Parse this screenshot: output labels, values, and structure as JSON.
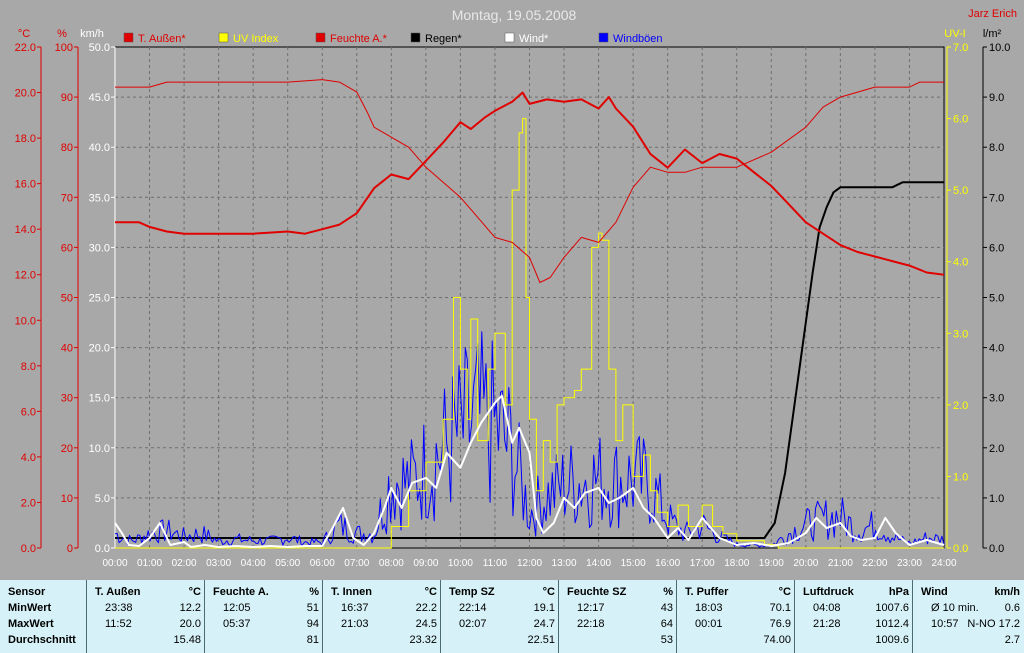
{
  "header": {
    "title": "Montag, 19.05.2008",
    "author": "Jarz Erich"
  },
  "chart_data": {
    "type": "line",
    "x_ticks": [
      "00:00",
      "01:00",
      "02:00",
      "03:00",
      "04:00",
      "05:00",
      "06:00",
      "07:00",
      "08:00",
      "09:00",
      "10:00",
      "11:00",
      "12:00",
      "13:00",
      "14:00",
      "15:00",
      "16:00",
      "17:00",
      "18:00",
      "19:00",
      "20:00",
      "21:00",
      "22:00",
      "23:00",
      "24:00"
    ],
    "axes": {
      "temp": {
        "unit": "°C",
        "min": 0,
        "max": 22,
        "ticks": [
          "0.0",
          "2.0",
          "4.0",
          "6.0",
          "8.0",
          "10.0",
          "12.0",
          "14.0",
          "16.0",
          "18.0",
          "20.0",
          "22.0"
        ],
        "color": "#e00000"
      },
      "humidity": {
        "unit": "%",
        "min": 0,
        "max": 100,
        "ticks": [
          "0",
          "10",
          "20",
          "30",
          "40",
          "50",
          "60",
          "70",
          "80",
          "90",
          "100"
        ],
        "color": "#e00000"
      },
      "wind": {
        "unit": "km/h",
        "min": 0,
        "max": 50,
        "ticks": [
          "0.0",
          "5.0",
          "10.0",
          "15.0",
          "20.0",
          "25.0",
          "30.0",
          "35.0",
          "40.0",
          "45.0",
          "50.0"
        ],
        "color": "#ffffff"
      },
      "uv": {
        "unit": "UV-I",
        "min": 0,
        "max": 7,
        "ticks": [
          "0.0",
          "1.0",
          "2.0",
          "3.0",
          "4.0",
          "5.0",
          "6.0",
          "7.0"
        ],
        "color": "#ffff00"
      },
      "rain": {
        "unit": "l/m²",
        "min": 0,
        "max": 10,
        "ticks": [
          "0.0",
          "1.0",
          "2.0",
          "3.0",
          "4.0",
          "5.0",
          "6.0",
          "7.0",
          "8.0",
          "9.0",
          "10.0"
        ],
        "color": "#000000"
      }
    },
    "legend": [
      {
        "name": "T. Außen*",
        "color": "#e00000"
      },
      {
        "name": "UV Index",
        "color": "#ffff00"
      },
      {
        "name": "Feuchte A.*",
        "color": "#e00000"
      },
      {
        "name": "Regen*",
        "color": "#000000"
      },
      {
        "name": "Wind*",
        "color": "#ffffff"
      },
      {
        "name": "Windböen",
        "color": "#0000ff"
      }
    ],
    "series": [
      {
        "name": "T. Außen*",
        "axis": "temp",
        "color": "#e00000",
        "width": 2,
        "x": [
          0,
          0.7,
          1,
          1.5,
          2,
          3,
          4,
          5,
          5.5,
          6,
          6.5,
          7,
          7.5,
          8,
          8.5,
          9,
          9.5,
          10,
          10.3,
          10.7,
          11,
          11.5,
          11.8,
          12,
          12.5,
          13,
          13.5,
          14,
          14.3,
          14.5,
          15,
          15.5,
          16,
          16.5,
          17,
          17.5,
          18,
          18.5,
          19,
          19.5,
          20,
          20.5,
          21,
          21.5,
          22,
          22.5,
          23,
          23.5,
          24
        ],
        "y": [
          14.3,
          14.3,
          14.1,
          13.9,
          13.8,
          13.8,
          13.8,
          13.9,
          13.8,
          14.0,
          14.2,
          14.7,
          15.8,
          16.4,
          16.2,
          17.0,
          17.8,
          18.7,
          18.4,
          18.9,
          19.2,
          19.6,
          20.0,
          19.5,
          19.7,
          19.6,
          19.7,
          19.3,
          19.8,
          19.3,
          18.5,
          17.3,
          16.7,
          17.5,
          16.9,
          17.3,
          17.1,
          16.5,
          15.9,
          15.1,
          14.3,
          13.8,
          13.3,
          13.0,
          12.8,
          12.6,
          12.4,
          12.1,
          12.0
        ]
      },
      {
        "name": "Feuchte A.*",
        "axis": "humidity",
        "color": "#e00000",
        "width": 1,
        "x": [
          0,
          1,
          1.5,
          2,
          3,
          4,
          5,
          6,
          6.5,
          7,
          7.3,
          7.5,
          8,
          8.5,
          9,
          9.5,
          10,
          10.5,
          11,
          11.5,
          12,
          12.3,
          12.6,
          13,
          13.5,
          14,
          14.5,
          15,
          15.5,
          16,
          16.5,
          17,
          18,
          19,
          20,
          20.5,
          21,
          22,
          22.5,
          23,
          23.3,
          24
        ],
        "y": [
          92,
          92,
          93,
          93,
          93,
          93,
          93,
          93.5,
          93,
          91,
          87,
          84,
          82,
          80,
          76,
          73,
          70,
          66,
          62,
          61,
          58,
          53,
          54,
          58,
          62,
          61,
          65,
          72,
          76,
          75,
          75,
          76,
          76,
          79,
          84,
          88,
          90,
          92,
          92,
          92,
          93,
          93
        ]
      },
      {
        "name": "UV Index",
        "axis": "uv",
        "color": "#ffff00",
        "width": 1,
        "step": true,
        "x": [
          0,
          7,
          8,
          8.5,
          9,
          9.5,
          9.8,
          10,
          10.2,
          10.3,
          10.5,
          10.8,
          11,
          11.3,
          11.5,
          11.7,
          11.8,
          11.9,
          12,
          12.2,
          12.4,
          12.6,
          12.8,
          13,
          13.3,
          13.5,
          13.8,
          14,
          14.1,
          14.3,
          14.5,
          14.7,
          15,
          15.3,
          15.5,
          15.7,
          16,
          16.3,
          16.6,
          17,
          17.3,
          17.6,
          18,
          18.4,
          18.8,
          19.2,
          24
        ],
        "y": [
          0,
          0,
          0.3,
          0.8,
          1.2,
          1.8,
          3.5,
          2.5,
          1.8,
          3.2,
          1.5,
          2.5,
          3.0,
          2.0,
          5.0,
          5.8,
          6.0,
          3.5,
          1.8,
          0.8,
          1.5,
          1.2,
          2.0,
          2.1,
          2.2,
          2.5,
          4.2,
          4.4,
          4.3,
          2.5,
          1.5,
          2.0,
          1.0,
          1.3,
          0.8,
          0.5,
          0.3,
          0.6,
          0.3,
          0.6,
          0.3,
          0.2,
          0.1,
          0.1,
          0.05,
          0,
          0
        ]
      },
      {
        "name": "Regen*",
        "axis": "rain",
        "color": "#000000",
        "width": 2,
        "x": [
          0,
          1,
          2,
          3,
          4,
          5,
          6,
          7,
          8,
          9,
          10,
          11,
          12,
          13,
          14,
          15,
          16,
          17,
          18,
          18.8,
          19.1,
          19.4,
          19.6,
          19.8,
          20.0,
          20.2,
          20.4,
          20.6,
          20.8,
          21.0,
          21.5,
          22,
          22.5,
          22.8,
          23,
          24
        ],
        "y": [
          0.2,
          0.2,
          0.2,
          0.2,
          0.2,
          0.2,
          0.2,
          0.2,
          0.2,
          0.2,
          0.2,
          0.2,
          0.2,
          0.2,
          0.2,
          0.2,
          0.2,
          0.2,
          0.2,
          0.2,
          0.5,
          1.5,
          2.5,
          3.5,
          4.5,
          5.5,
          6.4,
          6.8,
          7.1,
          7.2,
          7.2,
          7.2,
          7.2,
          7.3,
          7.3,
          7.3
        ]
      },
      {
        "name": "Wind*",
        "axis": "wind",
        "color": "#ffffff",
        "width": 2,
        "x": [
          0,
          0.2,
          0.4,
          0.7,
          1,
          1.3,
          1.6,
          2,
          2.2,
          2.6,
          3,
          3.5,
          4,
          4.5,
          5,
          5.5,
          6,
          6.3,
          6.6,
          6.9,
          7.2,
          7.5,
          7.8,
          8,
          8.3,
          8.6,
          9,
          9.3,
          9.6,
          10,
          10.3,
          10.6,
          11,
          11.2,
          11.5,
          11.7,
          12,
          12.2,
          12.4,
          12.7,
          13,
          13.3,
          13.6,
          14,
          14.3,
          14.6,
          15,
          15.3,
          15.6,
          16,
          16.3,
          16.6,
          17,
          17.5,
          18,
          18.5,
          19,
          19.5,
          20,
          20.3,
          20.6,
          21,
          21.3,
          21.6,
          22,
          22.3,
          22.6,
          23,
          23.5,
          24
        ],
        "y": [
          2.5,
          1.5,
          0.3,
          0.2,
          1.0,
          2.5,
          0.3,
          0.6,
          0.1,
          0.3,
          0.1,
          0.2,
          0.1,
          0.2,
          0.1,
          0.2,
          0.2,
          2.0,
          4.0,
          1.0,
          0.3,
          1.5,
          4.0,
          6.0,
          4.0,
          6.5,
          7.0,
          6.0,
          9.5,
          8.0,
          10.5,
          12.5,
          14.5,
          15.2,
          10.5,
          12.0,
          9.5,
          3.0,
          1.5,
          2.5,
          5.0,
          4.0,
          5.5,
          6.0,
          4.5,
          5.0,
          6.0,
          4.0,
          3.0,
          1.0,
          2.0,
          0.8,
          3.0,
          1.0,
          0.3,
          0.5,
          0.2,
          0.5,
          1.5,
          3.0,
          2.0,
          2.5,
          1.2,
          0.8,
          1.0,
          3.0,
          1.5,
          0.3,
          0.8,
          0.3
        ]
      },
      {
        "name": "Windböen",
        "axis": "wind",
        "color": "#0000ff",
        "width": 1,
        "spiky": true,
        "x": [
          0,
          0.5,
          1,
          1.5,
          2,
          2.5,
          3,
          3.5,
          4,
          4.5,
          5,
          5.5,
          6,
          6.5,
          7,
          7.5,
          8,
          8.5,
          9,
          9.5,
          10,
          10.5,
          11,
          11.5,
          12,
          12.5,
          13,
          13.5,
          14,
          14.5,
          15,
          15.5,
          16,
          16.5,
          17,
          17.5,
          18,
          18.5,
          19,
          19.5,
          20,
          20.5,
          21,
          21.5,
          22,
          22.5,
          23,
          23.5,
          24
        ],
        "y": [
          2.5,
          1.2,
          2.5,
          3.0,
          2.0,
          2.5,
          1.2,
          1.5,
          1.3,
          1.2,
          1.8,
          1.0,
          1.0,
          4.0,
          2.5,
          2.5,
          12.0,
          11.0,
          14.0,
          17.0,
          20.0,
          22.0,
          21.0,
          17.0,
          6.0,
          9.0,
          11.0,
          11.5,
          12.0,
          11.5,
          12.0,
          11.0,
          5.0,
          2.5,
          4.0,
          2.0,
          0.6,
          0.5,
          0.4,
          2.5,
          4.0,
          5.0,
          5.5,
          3.0,
          4.0,
          2.0,
          0.8,
          1.8,
          1.5
        ]
      }
    ]
  },
  "table": {
    "row_labels": [
      "Sensor",
      "MinWert",
      "MaxWert",
      "Durchschnitt"
    ],
    "columns": [
      {
        "name": "T. Außen",
        "unit": "°C",
        "min": [
          "23:38",
          "12.2"
        ],
        "max": [
          "11:52",
          "20.0"
        ],
        "avg": "15.48"
      },
      {
        "name": "Feuchte A.",
        "unit": "%",
        "min": [
          "12:05",
          "51"
        ],
        "max": [
          "05:37",
          "94"
        ],
        "avg": "81"
      },
      {
        "name": "T. Innen",
        "unit": "°C",
        "min": [
          "16:37",
          "22.2"
        ],
        "max": [
          "21:03",
          "24.5"
        ],
        "avg": "23.32"
      },
      {
        "name": "Temp SZ",
        "unit": "°C",
        "min": [
          "22:14",
          "19.1"
        ],
        "max": [
          "02:07",
          "24.7"
        ],
        "avg": "22.51"
      },
      {
        "name": "Feuchte SZ",
        "unit": "%",
        "min": [
          "12:17",
          "43"
        ],
        "max": [
          "22:18",
          "64"
        ],
        "avg": "53"
      },
      {
        "name": "T. Puffer",
        "unit": "°C",
        "min": [
          "18:03",
          "70.1"
        ],
        "max": [
          "00:01",
          "76.9"
        ],
        "avg": "74.00"
      },
      {
        "name": "Luftdruck",
        "unit": "hPa",
        "min": [
          "04:08",
          "1007.6"
        ],
        "max": [
          "21:28",
          "1012.4"
        ],
        "avg": "1009.6"
      },
      {
        "name": "Wind",
        "unit": "km/h",
        "min": [
          "Ø 10 min.",
          "0.6"
        ],
        "max": [
          "10:57",
          "N-NO 17.2"
        ],
        "avg": "2.7"
      }
    ]
  }
}
